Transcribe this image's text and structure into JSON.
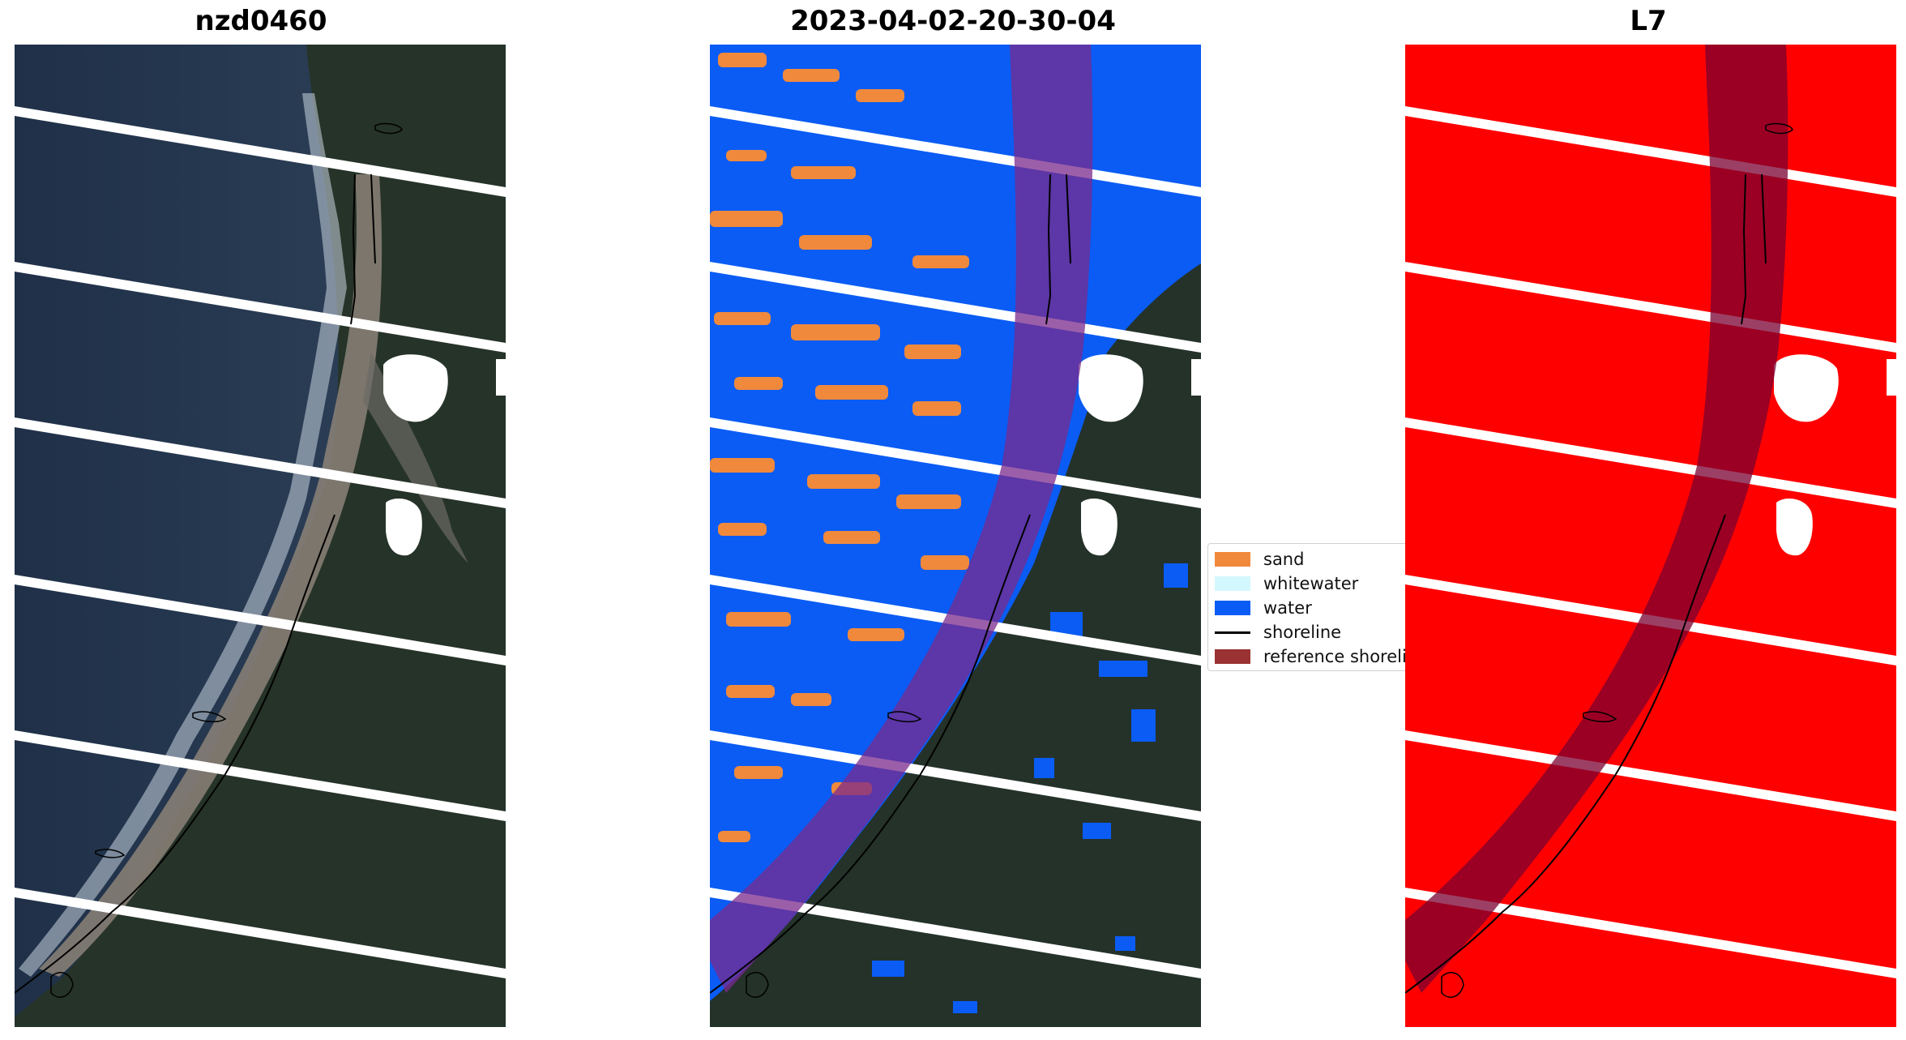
{
  "panels": [
    {
      "title": "nzd0460"
    },
    {
      "title": "2023-04-02-20-30-04"
    },
    {
      "title": "L7"
    }
  ],
  "legend": {
    "items": [
      {
        "label": "sand",
        "color": "#f0893c"
      },
      {
        "label": "whitewater",
        "color": "#d4f8ff"
      },
      {
        "label": "water",
        "color": "#0a5cf5"
      },
      {
        "label": "shoreline",
        "color": "#000000"
      },
      {
        "label": "reference shoreli",
        "color": "#9a3232"
      }
    ]
  },
  "colors": {
    "ocean": "#22344c",
    "land": "#22322a",
    "water_class": "#0a5cf5",
    "sand_class": "#f0893c",
    "mask_red": "#ff0000",
    "buffer_purple": "#7a2a8c",
    "buffer_red": "#a0003a",
    "stripe": "#ffffff"
  }
}
